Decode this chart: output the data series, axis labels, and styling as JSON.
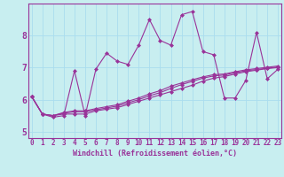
{
  "xlabel": "Windchill (Refroidissement éolien,°C)",
  "bg_color": "#c8eef0",
  "line_color": "#993399",
  "grid_color": "#aaddee",
  "xmin": 0,
  "xmax": 23,
  "ymin": 4.8,
  "ymax": 9.0,
  "yticks": [
    5,
    6,
    7,
    8
  ],
  "xticks": [
    0,
    1,
    2,
    3,
    4,
    5,
    6,
    7,
    8,
    9,
    10,
    11,
    12,
    13,
    14,
    15,
    16,
    17,
    18,
    19,
    20,
    21,
    22,
    23
  ],
  "series1_y": [
    6.1,
    5.55,
    5.5,
    5.55,
    5.55,
    5.55,
    5.65,
    5.7,
    5.75,
    5.85,
    5.95,
    6.05,
    6.15,
    6.25,
    6.35,
    6.45,
    6.58,
    6.67,
    6.72,
    6.8,
    6.87,
    6.92,
    6.97,
    7.0
  ],
  "series2_y": [
    6.1,
    5.55,
    5.5,
    5.58,
    5.62,
    5.62,
    5.68,
    5.74,
    5.8,
    5.9,
    6.0,
    6.12,
    6.22,
    6.35,
    6.47,
    6.57,
    6.67,
    6.74,
    6.77,
    6.84,
    6.9,
    6.94,
    6.98,
    7.02
  ],
  "series3_y": [
    6.1,
    5.55,
    5.5,
    5.6,
    5.65,
    5.65,
    5.72,
    5.78,
    5.84,
    5.95,
    6.05,
    6.18,
    6.28,
    6.42,
    6.52,
    6.62,
    6.71,
    6.78,
    6.8,
    6.87,
    6.93,
    6.97,
    7.01,
    7.05
  ],
  "series4_y": [
    6.1,
    5.55,
    5.45,
    5.5,
    6.9,
    5.5,
    6.95,
    7.45,
    7.2,
    7.1,
    7.7,
    8.5,
    7.85,
    7.7,
    8.65,
    8.75,
    7.5,
    7.4,
    6.05,
    6.05,
    6.6,
    8.1,
    6.65,
    6.95
  ],
  "marker": "D",
  "markersize": 2,
  "linewidth": 0.8,
  "xlabel_fontsize": 6,
  "tick_fontsize": 5.5,
  "ytick_fontsize": 7
}
